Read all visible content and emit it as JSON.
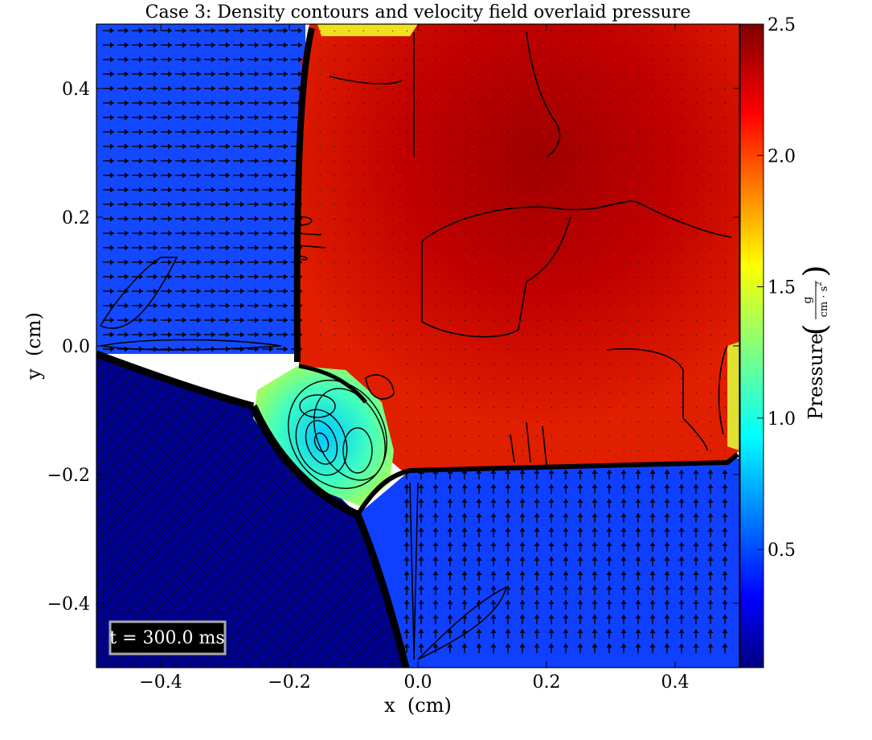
{
  "chart_data": {
    "type": "heatmap",
    "title": "Case 3: Density contours and velocity field overlaid pressure",
    "xlabel": "x  (cm)",
    "ylabel": "y  (cm)",
    "xlim": [
      -0.5,
      0.5
    ],
    "ylim": [
      -0.5,
      0.5
    ],
    "xticks": [
      -0.4,
      -0.2,
      0.0,
      0.2,
      0.4
    ],
    "xtick_labels": [
      "−0.4",
      "−0.2",
      "0.0",
      "0.2",
      "0.4"
    ],
    "yticks": [
      0.4,
      0.2,
      0.0,
      -0.2,
      -0.4
    ],
    "ytick_labels": [
      "0.4",
      "0.2",
      "0.0",
      "−0.2",
      "−0.4"
    ],
    "colorbar": {
      "label": "Pressure",
      "unit_numerator": "g",
      "unit_denominator": "cm · s",
      "unit_exponent": "2",
      "colormap": "jet",
      "range": [
        0.05,
        2.5
      ],
      "ticks": [
        2.5,
        2.0,
        1.5,
        1.0,
        0.5
      ],
      "tick_labels": [
        "2.5",
        "2.0",
        "1.5",
        "1.0",
        "0.5"
      ]
    },
    "annotation": "t = 300.0 ms",
    "regions": {
      "upper_left_pressure": 0.45,
      "upper_right_pressure": 2.4,
      "lower_left_pressure": 0.08,
      "lower_right_pressure": 0.4,
      "vortex_core_pressure": 1.0
    },
    "grid": false,
    "legend": "none"
  }
}
